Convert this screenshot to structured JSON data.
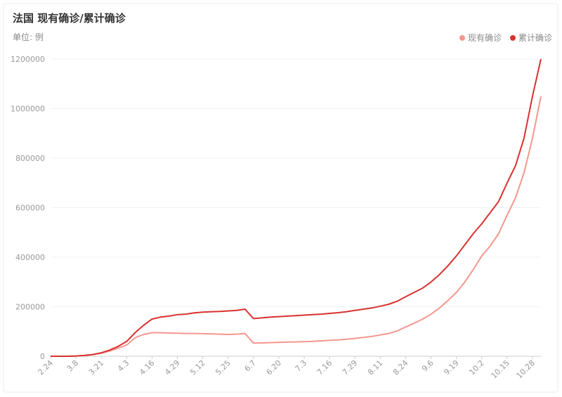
{
  "chart_data": {
    "type": "line",
    "title": "法国 现有确诊/累计确诊",
    "subtitle": "单位: 例",
    "categories": [
      "2.24",
      null,
      null,
      "3.8",
      null,
      null,
      "3.21",
      null,
      null,
      "4.3",
      null,
      null,
      "4.16",
      null,
      null,
      "4.29",
      null,
      null,
      "5.12",
      null,
      null,
      "5.25",
      null,
      null,
      "6.7",
      null,
      null,
      "6.20",
      null,
      null,
      "7.3",
      null,
      null,
      "7.16",
      null,
      null,
      "7.29",
      null,
      null,
      "8.11",
      null,
      null,
      "8.24",
      null,
      null,
      "9.6",
      null,
      null,
      "9.19",
      null,
      null,
      "10.2",
      null,
      null,
      "10.15",
      null,
      null,
      "10.28",
      null
    ],
    "series": [
      {
        "name": "现有确诊",
        "color": "#f4978e",
        "values": [
          0,
          0,
          100,
          900,
          2800,
          6500,
          12500,
          21000,
          33000,
          45000,
          75000,
          88000,
          95000,
          95000,
          94000,
          93000,
          92000,
          92000,
          91000,
          90000,
          89000,
          88000,
          89000,
          92000,
          53000,
          54000,
          55000,
          56000,
          57000,
          58000,
          59000,
          60000,
          62000,
          64000,
          66000,
          69000,
          72000,
          76000,
          80000,
          86000,
          92000,
          102000,
          118000,
          133000,
          150000,
          170000,
          195000,
          225000,
          258000,
          300000,
          350000,
          405000,
          445000,
          495000,
          570000,
          640000,
          740000,
          880000,
          1050000
        ]
      },
      {
        "name": "累计确诊",
        "color": "#d9312f",
        "values": [
          0,
          0,
          100,
          1000,
          3000,
          7000,
          14000,
          25000,
          40000,
          60000,
          95000,
          125000,
          150000,
          158000,
          162000,
          168000,
          170000,
          175000,
          178000,
          180000,
          181000,
          183000,
          185000,
          190000,
          152000,
          155000,
          158000,
          160000,
          162000,
          164000,
          166000,
          168000,
          170000,
          173000,
          176000,
          180000,
          185000,
          190000,
          195000,
          202000,
          210000,
          222000,
          240000,
          258000,
          275000,
          300000,
          330000,
          365000,
          405000,
          450000,
          495000,
          535000,
          580000,
          625000,
          700000,
          770000,
          880000,
          1050000,
          1200000
        ]
      }
    ],
    "ylim": [
      0,
      1200000
    ],
    "yticks": [
      0,
      200000,
      400000,
      600000,
      800000,
      1000000,
      1200000
    ],
    "grid": true,
    "legend": "top-right"
  }
}
